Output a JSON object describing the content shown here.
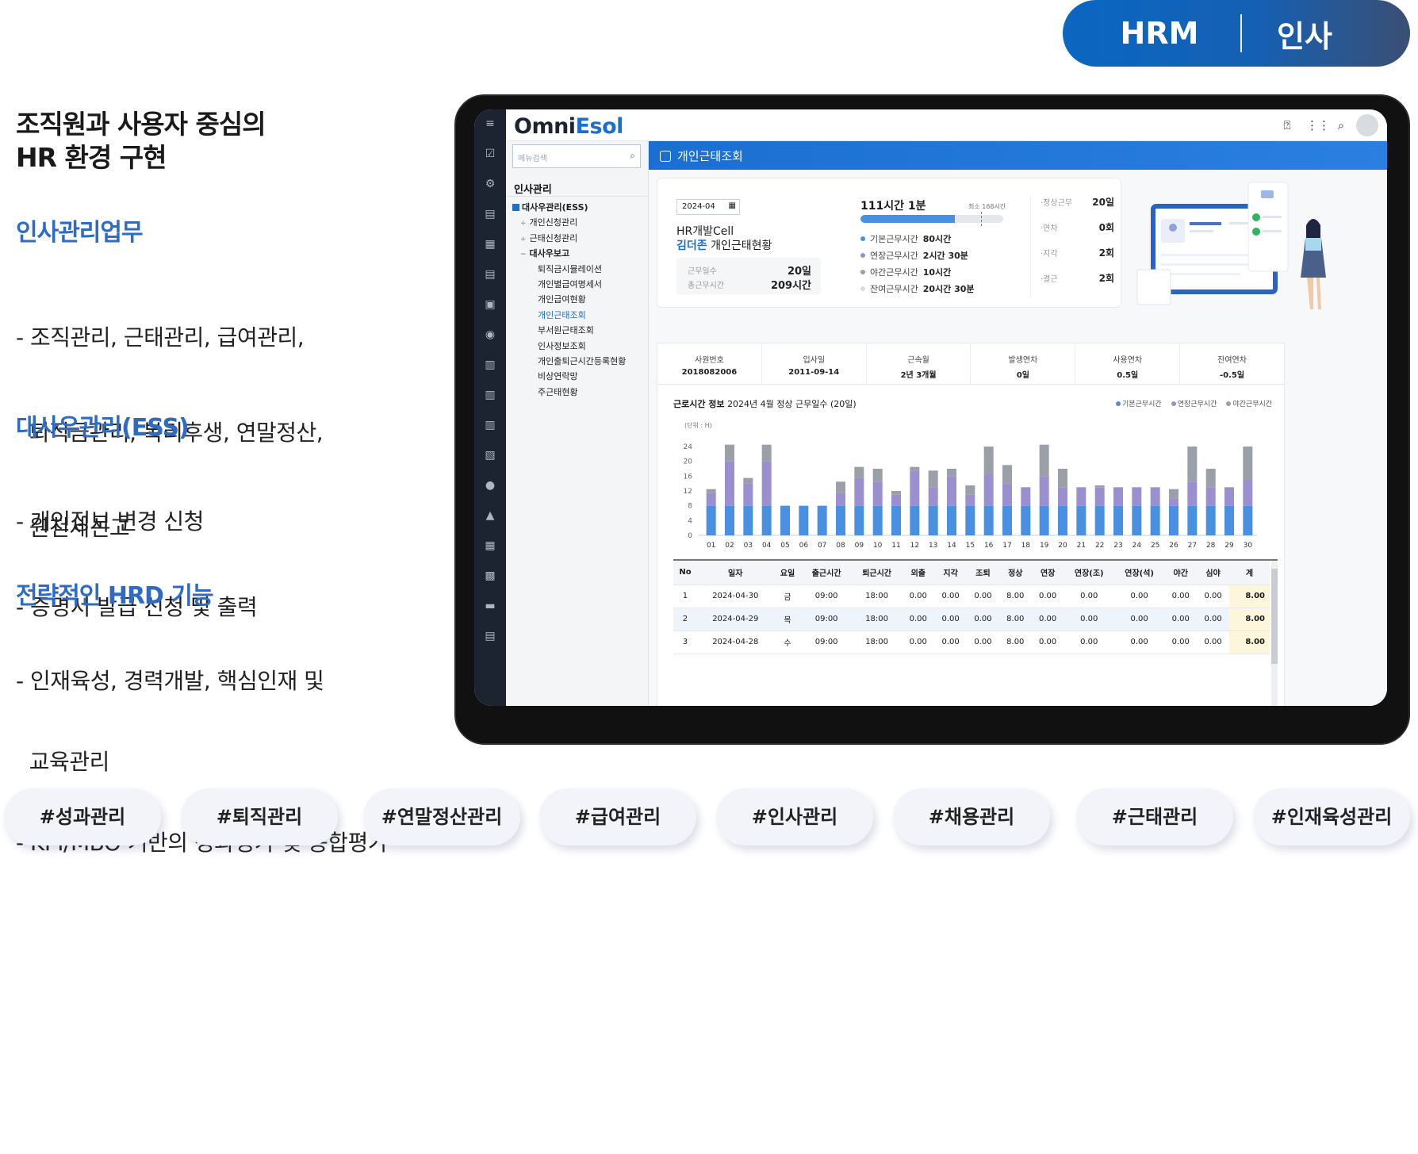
{
  "badge": {
    "left": "HRM",
    "right": "인사"
  },
  "left_panel": {
    "headline": [
      "조직원과 사용자 중심의",
      "HR 환경 구현"
    ],
    "sections": [
      {
        "title": "인사관리업무",
        "lines": [
          "- 조직관리, 근태관리, 급여관리,",
          "  퇴직금관리, 복리후생, 연말정산,",
          "  원천세신고"
        ]
      },
      {
        "title": "대사우관리(ESS)",
        "lines": [
          "- 개인정보 변경 신청",
          "- 증명서 발급 신청 및 출력"
        ]
      },
      {
        "title": "전략적인 HRD 기능",
        "lines": [
          "- 인재육성, 경력개발, 핵심인재 및",
          "  교육관리",
          "- KPI/MBO 기반의 성과평가 및 종합평가"
        ]
      }
    ]
  },
  "app": {
    "logo_part1": "Omni",
    "logo_part2": "Esol",
    "menu_search_placeholder": "메뉴검색",
    "menu_title": "인사관리",
    "menu_items": [
      {
        "label": "대사우관리(ESS)",
        "level": 0,
        "bold": true,
        "checked": true
      },
      {
        "label": "개인신청관리",
        "level": 1,
        "prefix": "+"
      },
      {
        "label": "근태신청관리",
        "level": 1,
        "prefix": "+"
      },
      {
        "label": "대사우보고",
        "level": 1,
        "prefix": "−",
        "bold": true
      },
      {
        "label": "퇴직금시뮬레이션",
        "level": 2
      },
      {
        "label": "개인별급여명세서",
        "level": 2
      },
      {
        "label": "개인급여현황",
        "level": 2
      },
      {
        "label": "개인근태조회",
        "level": 2,
        "active": true
      },
      {
        "label": "부서원근태조회",
        "level": 2
      },
      {
        "label": "인사정보조회",
        "level": 2
      },
      {
        "label": "개인출퇴근시간등록현황",
        "level": 2
      },
      {
        "label": "비상연락망",
        "level": 2
      },
      {
        "label": "주근태현황",
        "level": 2
      }
    ],
    "page_title": "개인근태조회",
    "summary": {
      "month": "2024-04",
      "dept": "HR개발Cell",
      "name": "김더존",
      "title_suffix": "개인근태현황",
      "work_days_label": "근무일수",
      "work_days": "20일",
      "total_hours_label": "총근무시간",
      "total_hours": "209시간",
      "total_time": "111시간 1분",
      "min_label": "최소 168시간",
      "progress_fraction": 0.66,
      "breakdown": [
        {
          "label": "기본근무시간",
          "value": "80시간",
          "color": "#4a90e2"
        },
        {
          "label": "연장근무시간",
          "value": "2시간 30분",
          "color": "#9b8fd0"
        },
        {
          "label": "야간근무시간",
          "value": "10시간",
          "color": "#9aa0a8"
        },
        {
          "label": "잔여근무시간",
          "value": "20시간 30분",
          "color": "#d8dbe0"
        }
      ],
      "stats": [
        {
          "label": "·정상근무",
          "value": "20일"
        },
        {
          "label": "·연차",
          "value": "0회"
        },
        {
          "label": "·지각",
          "value": "2회"
        },
        {
          "label": "·결근",
          "value": "2회"
        }
      ]
    },
    "info": [
      {
        "label": "사원번호",
        "value": "2018082006"
      },
      {
        "label": "입사일",
        "value": "2011-09-14"
      },
      {
        "label": "근속월",
        "value": "2년 3개월"
      },
      {
        "label": "발생연차",
        "value": "0일"
      },
      {
        "label": "사용연차",
        "value": "0.5일"
      },
      {
        "label": "잔여연차",
        "value": "-0.5일"
      }
    ],
    "chart_title_bold": "근로시간 정보",
    "chart_title_rest": "2024년 4월 정상 근무일수 (20일)",
    "legend": [
      "기본근무시간",
      "연장근무시간",
      "야간근무시간"
    ],
    "unit_label": "(단위 : H)",
    "table_headers": [
      "No",
      "일자",
      "요일",
      "출근시간",
      "퇴근시간",
      "외출",
      "지각",
      "조퇴",
      "정상",
      "연장",
      "연장(조)",
      "연장(석)",
      "야간",
      "심야",
      "계"
    ],
    "table_rows": [
      [
        "1",
        "2024-04-30",
        "금",
        "09:00",
        "18:00",
        "0.00",
        "0.00",
        "0.00",
        "8.00",
        "0.00",
        "0.00",
        "0.00",
        "0.00",
        "0.00",
        "8.00"
      ],
      [
        "2",
        "2024-04-29",
        "목",
        "09:00",
        "18:00",
        "0.00",
        "0.00",
        "0.00",
        "8.00",
        "0.00",
        "0.00",
        "0.00",
        "0.00",
        "0.00",
        "8.00"
      ],
      [
        "3",
        "2024-04-28",
        "수",
        "09:00",
        "18:00",
        "0.00",
        "0.00",
        "0.00",
        "8.00",
        "0.00",
        "0.00",
        "0.00",
        "0.00",
        "0.00",
        "8.00"
      ]
    ]
  },
  "chart_data": {
    "type": "bar",
    "stacked": true,
    "title": "근로시간 정보 2024년 4월 정상 근무일수 (20일)",
    "ylabel": "(단위 : H)",
    "ylim": [
      0,
      24
    ],
    "yticks": [
      0,
      4,
      8,
      12,
      16,
      20,
      24
    ],
    "categories": [
      "01",
      "02",
      "03",
      "04",
      "05",
      "06",
      "07",
      "08",
      "09",
      "10",
      "11",
      "12",
      "13",
      "14",
      "15",
      "16",
      "17",
      "18",
      "19",
      "20",
      "21",
      "22",
      "23",
      "24",
      "25",
      "26",
      "27",
      "28",
      "29",
      "30"
    ],
    "series": [
      {
        "name": "기본근무시간",
        "color": "#4a90e2",
        "values": [
          8,
          8,
          8,
          8,
          8,
          8,
          8,
          8,
          8,
          8,
          8,
          8,
          8,
          8,
          8,
          8,
          8,
          8,
          8,
          8,
          8,
          8,
          8,
          8,
          8,
          8,
          8,
          8,
          8,
          8
        ]
      },
      {
        "name": "연장근무시간",
        "color": "#9b8fd0",
        "values": [
          3.5,
          12,
          6,
          12,
          0,
          0,
          0,
          3.5,
          7.5,
          6.5,
          3,
          9.5,
          5,
          8,
          3,
          8.5,
          6,
          5,
          8,
          5,
          5,
          5,
          5,
          5,
          5,
          2,
          6.5,
          5,
          5,
          7
        ]
      },
      {
        "name": "야간근무시간",
        "color": "#9aa0a8",
        "values": [
          1,
          4.5,
          1.5,
          4.5,
          0,
          0,
          0,
          3,
          3,
          3.5,
          1,
          1,
          4.5,
          2,
          2.5,
          7.5,
          5,
          0,
          8.5,
          5,
          0,
          0.5,
          0,
          0,
          0,
          2.5,
          9.5,
          5,
          0,
          9
        ]
      }
    ],
    "legend_position": "top-right",
    "grid": false
  },
  "tags": [
    "#성과관리",
    "#퇴직관리",
    "#연말정산관리",
    "#급여관리",
    "#인사관리",
    "#채용관리",
    "#근태관리",
    "#인재육성관리"
  ]
}
